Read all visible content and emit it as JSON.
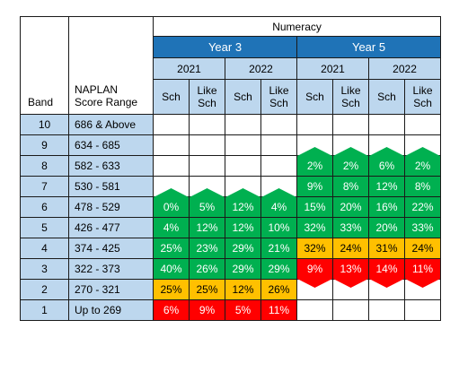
{
  "table": {
    "title": "Numeracy",
    "year_groups": [
      "Year 3",
      "Year 5"
    ],
    "calendar_years": [
      "2021",
      "2022",
      "2021",
      "2022"
    ],
    "sub_headers": [
      [
        "Sch"
      ],
      [
        "Like",
        "Sch"
      ],
      [
        "Sch"
      ],
      [
        "Like",
        "Sch"
      ],
      [
        "Sch"
      ],
      [
        "Like",
        "Sch"
      ],
      [
        "Sch"
      ],
      [
        "Like",
        "Sch"
      ]
    ],
    "band_header": "Band",
    "range_header": [
      "NAPLAN",
      "Score Range"
    ],
    "colors": {
      "header_blue": "#1f73b7",
      "light_blue": "#bdd7ee",
      "green": "#00b050",
      "amber": "#ffc000",
      "red": "#ff0000"
    },
    "rows": [
      {
        "band": "10",
        "range": "686 & Above",
        "cells": [
          {
            "v": "",
            "c": "white"
          },
          {
            "v": "",
            "c": "white"
          },
          {
            "v": "",
            "c": "white"
          },
          {
            "v": "",
            "c": "white"
          },
          {
            "v": "",
            "c": "white"
          },
          {
            "v": "",
            "c": "white"
          },
          {
            "v": "",
            "c": "white"
          },
          {
            "v": "",
            "c": "white"
          }
        ]
      },
      {
        "band": "9",
        "range": "634 - 685",
        "cells": [
          {
            "v": "",
            "c": "white"
          },
          {
            "v": "",
            "c": "white"
          },
          {
            "v": "",
            "c": "white"
          },
          {
            "v": "",
            "c": "white"
          },
          {
            "v": "",
            "c": "white"
          },
          {
            "v": "",
            "c": "white"
          },
          {
            "v": "",
            "c": "white"
          },
          {
            "v": "",
            "c": "white"
          }
        ]
      },
      {
        "band": "8",
        "range": "582 - 633",
        "cells": [
          {
            "v": "",
            "c": "white"
          },
          {
            "v": "",
            "c": "white"
          },
          {
            "v": "",
            "c": "white"
          },
          {
            "v": "",
            "c": "white"
          },
          {
            "v": "2%",
            "c": "green",
            "up": true
          },
          {
            "v": "2%",
            "c": "green",
            "up": true
          },
          {
            "v": "6%",
            "c": "green",
            "up": true
          },
          {
            "v": "2%",
            "c": "green",
            "up": true
          }
        ]
      },
      {
        "band": "7",
        "range": "530 - 581",
        "cells": [
          {
            "v": "",
            "c": "white"
          },
          {
            "v": "",
            "c": "white"
          },
          {
            "v": "",
            "c": "white"
          },
          {
            "v": "",
            "c": "white"
          },
          {
            "v": "9%",
            "c": "green"
          },
          {
            "v": "8%",
            "c": "green"
          },
          {
            "v": "12%",
            "c": "green"
          },
          {
            "v": "8%",
            "c": "green"
          }
        ]
      },
      {
        "band": "6",
        "range": "478 - 529",
        "cells": [
          {
            "v": "0%",
            "c": "green",
            "up": true
          },
          {
            "v": "5%",
            "c": "green",
            "up": true
          },
          {
            "v": "12%",
            "c": "green",
            "up": true
          },
          {
            "v": "4%",
            "c": "green",
            "up": true
          },
          {
            "v": "15%",
            "c": "green"
          },
          {
            "v": "20%",
            "c": "green"
          },
          {
            "v": "16%",
            "c": "green"
          },
          {
            "v": "22%",
            "c": "green"
          }
        ]
      },
      {
        "band": "5",
        "range": "426 - 477",
        "cells": [
          {
            "v": "4%",
            "c": "green"
          },
          {
            "v": "12%",
            "c": "green"
          },
          {
            "v": "12%",
            "c": "green"
          },
          {
            "v": "10%",
            "c": "green"
          },
          {
            "v": "32%",
            "c": "green"
          },
          {
            "v": "33%",
            "c": "green"
          },
          {
            "v": "20%",
            "c": "green"
          },
          {
            "v": "33%",
            "c": "green"
          }
        ]
      },
      {
        "band": "4",
        "range": "374 - 425",
        "cells": [
          {
            "v": "25%",
            "c": "green"
          },
          {
            "v": "23%",
            "c": "green"
          },
          {
            "v": "29%",
            "c": "green"
          },
          {
            "v": "21%",
            "c": "green"
          },
          {
            "v": "32%",
            "c": "amber"
          },
          {
            "v": "24%",
            "c": "amber"
          },
          {
            "v": "31%",
            "c": "amber"
          },
          {
            "v": "24%",
            "c": "amber"
          }
        ]
      },
      {
        "band": "3",
        "range": "322 - 373",
        "cells": [
          {
            "v": "40%",
            "c": "green"
          },
          {
            "v": "26%",
            "c": "green"
          },
          {
            "v": "29%",
            "c": "green"
          },
          {
            "v": "29%",
            "c": "green"
          },
          {
            "v": "9%",
            "c": "red",
            "down": true
          },
          {
            "v": "13%",
            "c": "red",
            "down": true
          },
          {
            "v": "14%",
            "c": "red",
            "down": true
          },
          {
            "v": "11%",
            "c": "red",
            "down": true
          }
        ]
      },
      {
        "band": "2",
        "range": "270 - 321",
        "cells": [
          {
            "v": "25%",
            "c": "amber"
          },
          {
            "v": "25%",
            "c": "amber"
          },
          {
            "v": "12%",
            "c": "amber"
          },
          {
            "v": "26%",
            "c": "amber"
          },
          {
            "v": "",
            "c": "white"
          },
          {
            "v": "",
            "c": "white"
          },
          {
            "v": "",
            "c": "white"
          },
          {
            "v": "",
            "c": "white"
          }
        ]
      },
      {
        "band": "1",
        "range": "Up to 269",
        "cells": [
          {
            "v": "6%",
            "c": "red"
          },
          {
            "v": "9%",
            "c": "red"
          },
          {
            "v": "5%",
            "c": "red"
          },
          {
            "v": "11%",
            "c": "red"
          },
          {
            "v": "",
            "c": "white"
          },
          {
            "v": "",
            "c": "white"
          },
          {
            "v": "",
            "c": "white"
          },
          {
            "v": "",
            "c": "white"
          }
        ]
      }
    ]
  }
}
